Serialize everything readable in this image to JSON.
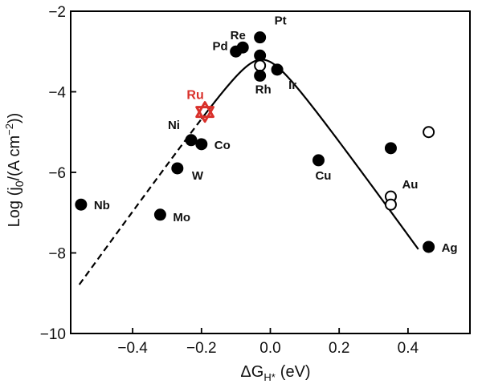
{
  "chart_data": {
    "type": "scatter",
    "xlabel": "ΔG",
    "xlabel_sub": "H*",
    "xlabel_unit": "(eV)",
    "ylabel": "Log (j",
    "ylabel_sub": "0",
    "ylabel_mid": "/(A cm",
    "ylabel_sup": "−2",
    "ylabel_end": "))",
    "xlim": [
      -0.58,
      0.58
    ],
    "ylim": [
      -10,
      -2
    ],
    "x_ticks": [
      -0.4,
      -0.2,
      0.0,
      0.2,
      0.4
    ],
    "x_tick_labels": [
      "−0.4",
      "−0.2",
      "0.0",
      "0.2",
      "0.4"
    ],
    "y_ticks": [
      -10,
      -8,
      -6,
      -4,
      -2
    ],
    "y_tick_labels": [
      "−10",
      "−8",
      "−6",
      "−4",
      "−2"
    ],
    "grid": false,
    "colors": {
      "highlight": "#d9302a",
      "marker": "#000000"
    },
    "volcano": {
      "left_slope": 11.8,
      "right_slope": -11.8,
      "peak_x": -0.025,
      "peak_y": -3.2,
      "dashed_x_range": [
        -0.555,
        -0.2
      ],
      "solid_x_range": [
        -0.2,
        0.43
      ]
    },
    "points": [
      {
        "label": "Re",
        "x": -0.08,
        "y": -2.9,
        "filled": true
      },
      {
        "label": "Pd",
        "x": -0.1,
        "y": -3.0,
        "filled": true
      },
      {
        "label": "Pt",
        "x": -0.03,
        "y": -2.65,
        "filled": true
      },
      {
        "label": "",
        "x": -0.03,
        "y": -3.1,
        "filled": true
      },
      {
        "label": "",
        "x": -0.03,
        "y": -3.35,
        "filled": false
      },
      {
        "label": "Rh",
        "x": -0.03,
        "y": -3.6,
        "filled": true
      },
      {
        "label": "Ir",
        "x": 0.02,
        "y": -3.45,
        "filled": true
      },
      {
        "label": "Ni",
        "x": -0.23,
        "y": -5.2,
        "filled": true
      },
      {
        "label": "Co",
        "x": -0.2,
        "y": -5.3,
        "filled": true
      },
      {
        "label": "W",
        "x": -0.27,
        "y": -5.9,
        "filled": true
      },
      {
        "label": "Mo",
        "x": -0.32,
        "y": -7.05,
        "filled": true
      },
      {
        "label": "Nb",
        "x": -0.55,
        "y": -6.8,
        "filled": true
      },
      {
        "label": "Cu",
        "x": 0.14,
        "y": -5.7,
        "filled": true
      },
      {
        "label": "",
        "x": 0.35,
        "y": -5.4,
        "filled": true
      },
      {
        "label": "",
        "x": 0.46,
        "y": -5.0,
        "filled": false
      },
      {
        "label": "Au",
        "x": 0.35,
        "y": -6.6,
        "filled": false
      },
      {
        "label": "",
        "x": 0.35,
        "y": -6.8,
        "filled": false
      },
      {
        "label": "Ag",
        "x": 0.46,
        "y": -7.85,
        "filled": true
      }
    ],
    "highlight": {
      "label": "Ru",
      "x": -0.19,
      "y": -4.5,
      "marker": "star"
    }
  }
}
